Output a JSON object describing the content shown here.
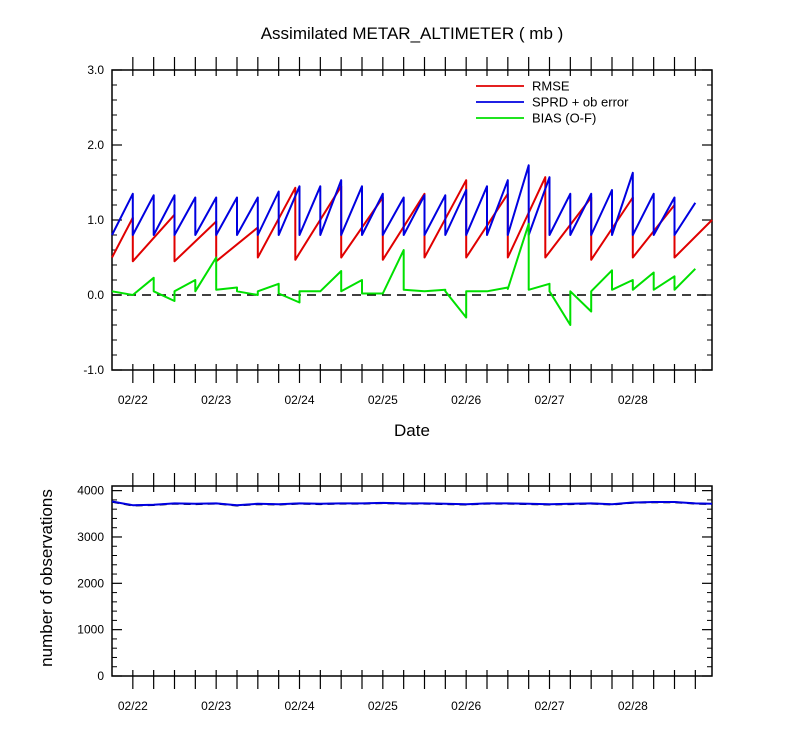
{
  "chart_data": [
    {
      "type": "line",
      "title": "Assimilated METAR_ALTIMETER ( mb )",
      "xlabel": "Date",
      "ylabel": "",
      "ylim": [
        -1.0,
        3.0
      ],
      "yticks": [
        "-1.0",
        "0.0",
        "1.0",
        "2.0",
        "3.0"
      ],
      "x_dates": [
        "02/22",
        "02/23",
        "02/24",
        "02/25",
        "02/26",
        "02/27",
        "02/28"
      ],
      "x_range_days": [
        21.75,
        28.95
      ],
      "zero_line": "dashed",
      "legend_position": "top-right",
      "series": [
        {
          "name": "RMSE",
          "color": "#e00000",
          "points": [
            [
              21.75,
              0.5
            ],
            [
              22.0,
              1.03
            ],
            [
              22.0,
              0.45
            ],
            [
              22.5,
              1.07
            ],
            [
              22.5,
              0.45
            ],
            [
              23.0,
              0.98
            ],
            [
              23.0,
              0.45
            ],
            [
              23.5,
              0.9
            ],
            [
              23.5,
              0.5
            ],
            [
              23.95,
              1.43
            ],
            [
              23.95,
              0.47
            ],
            [
              24.5,
              1.45
            ],
            [
              24.5,
              0.5
            ],
            [
              25.0,
              1.3
            ],
            [
              25.0,
              0.47
            ],
            [
              25.5,
              1.35
            ],
            [
              25.5,
              0.5
            ],
            [
              26.0,
              1.53
            ],
            [
              26.0,
              0.5
            ],
            [
              26.5,
              1.35
            ],
            [
              26.5,
              0.5
            ],
            [
              26.95,
              1.57
            ],
            [
              26.95,
              0.5
            ],
            [
              27.5,
              1.3
            ],
            [
              27.5,
              0.47
            ],
            [
              28.0,
              1.3
            ],
            [
              28.0,
              0.5
            ],
            [
              28.5,
              1.2
            ],
            [
              28.5,
              0.5
            ],
            [
              28.95,
              1.0
            ]
          ]
        },
        {
          "name": "SPRD + ob error",
          "color": "#0000e0",
          "points": [
            [
              21.75,
              0.8
            ],
            [
              22.0,
              1.35
            ],
            [
              22.0,
              0.8
            ],
            [
              22.25,
              1.33
            ],
            [
              22.25,
              0.8
            ],
            [
              22.5,
              1.33
            ],
            [
              22.5,
              0.8
            ],
            [
              22.75,
              1.3
            ],
            [
              22.75,
              0.8
            ],
            [
              23.0,
              1.3
            ],
            [
              23.0,
              0.8
            ],
            [
              23.25,
              1.3
            ],
            [
              23.25,
              0.8
            ],
            [
              23.5,
              1.3
            ],
            [
              23.5,
              0.8
            ],
            [
              23.75,
              1.38
            ],
            [
              23.75,
              0.8
            ],
            [
              24.0,
              1.45
            ],
            [
              24.0,
              0.8
            ],
            [
              24.25,
              1.45
            ],
            [
              24.25,
              0.8
            ],
            [
              24.5,
              1.53
            ],
            [
              24.5,
              0.8
            ],
            [
              24.75,
              1.45
            ],
            [
              24.75,
              0.8
            ],
            [
              25.0,
              1.35
            ],
            [
              25.0,
              0.8
            ],
            [
              25.25,
              1.3
            ],
            [
              25.25,
              0.8
            ],
            [
              25.5,
              1.33
            ],
            [
              25.5,
              0.8
            ],
            [
              25.75,
              1.33
            ],
            [
              25.75,
              0.8
            ],
            [
              26.0,
              1.4
            ],
            [
              26.0,
              0.8
            ],
            [
              26.25,
              1.45
            ],
            [
              26.25,
              0.8
            ],
            [
              26.5,
              1.53
            ],
            [
              26.5,
              0.8
            ],
            [
              26.75,
              1.73
            ],
            [
              26.75,
              0.8
            ],
            [
              27.0,
              1.57
            ],
            [
              27.0,
              0.8
            ],
            [
              27.25,
              1.35
            ],
            [
              27.25,
              0.8
            ],
            [
              27.5,
              1.35
            ],
            [
              27.5,
              0.8
            ],
            [
              27.75,
              1.4
            ],
            [
              27.75,
              0.8
            ],
            [
              28.0,
              1.63
            ],
            [
              28.0,
              0.8
            ],
            [
              28.25,
              1.35
            ],
            [
              28.25,
              0.8
            ],
            [
              28.5,
              1.3
            ],
            [
              28.5,
              0.8
            ],
            [
              28.75,
              1.23
            ]
          ]
        },
        {
          "name": "BIAS (O-F)",
          "color": "#00e000",
          "points": [
            [
              21.75,
              0.05
            ],
            [
              22.0,
              0.0
            ],
            [
              22.25,
              0.23
            ],
            [
              22.25,
              0.05
            ],
            [
              22.5,
              -0.08
            ],
            [
              22.5,
              0.05
            ],
            [
              22.75,
              0.2
            ],
            [
              22.75,
              0.05
            ],
            [
              23.0,
              0.5
            ],
            [
              23.0,
              0.07
            ],
            [
              23.25,
              0.1
            ],
            [
              23.25,
              0.05
            ],
            [
              23.5,
              0.0
            ],
            [
              23.5,
              0.05
            ],
            [
              23.75,
              0.15
            ],
            [
              23.75,
              0.02
            ],
            [
              24.0,
              -0.1
            ],
            [
              24.0,
              0.05
            ],
            [
              24.25,
              0.05
            ],
            [
              24.25,
              0.05
            ],
            [
              24.5,
              0.32
            ],
            [
              24.5,
              0.05
            ],
            [
              24.75,
              0.2
            ],
            [
              24.75,
              0.02
            ],
            [
              25.0,
              0.02
            ],
            [
              25.0,
              0.02
            ],
            [
              25.25,
              0.6
            ],
            [
              25.25,
              0.07
            ],
            [
              25.5,
              0.05
            ],
            [
              25.5,
              0.05
            ],
            [
              25.75,
              0.07
            ],
            [
              25.75,
              0.05
            ],
            [
              26.0,
              -0.3
            ],
            [
              26.0,
              0.05
            ],
            [
              26.25,
              0.05
            ],
            [
              26.25,
              0.05
            ],
            [
              26.5,
              0.1
            ],
            [
              26.5,
              0.08
            ],
            [
              26.75,
              0.95
            ],
            [
              26.75,
              0.07
            ],
            [
              27.0,
              0.15
            ],
            [
              27.0,
              0.05
            ],
            [
              27.25,
              -0.4
            ],
            [
              27.25,
              0.05
            ],
            [
              27.5,
              -0.22
            ],
            [
              27.5,
              0.05
            ],
            [
              27.75,
              0.33
            ],
            [
              27.75,
              0.07
            ],
            [
              28.0,
              0.2
            ],
            [
              28.0,
              0.07
            ],
            [
              28.25,
              0.3
            ],
            [
              28.25,
              0.07
            ],
            [
              28.5,
              0.25
            ],
            [
              28.5,
              0.07
            ],
            [
              28.75,
              0.35
            ]
          ]
        }
      ]
    },
    {
      "type": "line",
      "title": "",
      "xlabel": "",
      "ylabel": "number of observations",
      "ylim": [
        0,
        4100
      ],
      "yticks": [
        "0",
        "1000",
        "2000",
        "3000",
        "4000"
      ],
      "x_dates": [
        "02/22",
        "02/23",
        "02/24",
        "02/25",
        "02/26",
        "02/27",
        "02/28"
      ],
      "x_range_days": [
        21.75,
        28.95
      ],
      "series": [
        {
          "color": "#000000",
          "dashed": true,
          "points": [
            [
              21.75,
              3760
            ],
            [
              22.0,
              3680
            ],
            [
              22.25,
              3690
            ],
            [
              22.5,
              3720
            ],
            [
              22.75,
              3710
            ],
            [
              23.0,
              3720
            ],
            [
              23.25,
              3680
            ],
            [
              23.5,
              3710
            ],
            [
              23.75,
              3700
            ],
            [
              24.0,
              3720
            ],
            [
              24.25,
              3710
            ],
            [
              24.5,
              3720
            ],
            [
              24.75,
              3720
            ],
            [
              25.0,
              3730
            ],
            [
              25.25,
              3720
            ],
            [
              25.5,
              3720
            ],
            [
              25.75,
              3710
            ],
            [
              26.0,
              3700
            ],
            [
              26.25,
              3720
            ],
            [
              26.5,
              3720
            ],
            [
              26.75,
              3710
            ],
            [
              27.0,
              3700
            ],
            [
              27.25,
              3710
            ],
            [
              27.5,
              3720
            ],
            [
              27.75,
              3700
            ],
            [
              28.0,
              3740
            ],
            [
              28.25,
              3750
            ],
            [
              28.5,
              3750
            ],
            [
              28.75,
              3720
            ],
            [
              28.95,
              3710
            ]
          ]
        },
        {
          "color": "#0000e0",
          "dashed": false,
          "points": [
            [
              21.75,
              3765
            ],
            [
              22.0,
              3685
            ],
            [
              22.25,
              3695
            ],
            [
              22.5,
              3725
            ],
            [
              22.75,
              3715
            ],
            [
              23.0,
              3725
            ],
            [
              23.25,
              3685
            ],
            [
              23.5,
              3715
            ],
            [
              23.75,
              3705
            ],
            [
              24.0,
              3725
            ],
            [
              24.25,
              3715
            ],
            [
              24.5,
              3725
            ],
            [
              24.75,
              3725
            ],
            [
              25.0,
              3735
            ],
            [
              25.25,
              3725
            ],
            [
              25.5,
              3725
            ],
            [
              25.75,
              3715
            ],
            [
              26.0,
              3705
            ],
            [
              26.25,
              3725
            ],
            [
              26.5,
              3725
            ],
            [
              26.75,
              3715
            ],
            [
              27.0,
              3705
            ],
            [
              27.25,
              3715
            ],
            [
              27.5,
              3725
            ],
            [
              27.75,
              3705
            ],
            [
              28.0,
              3745
            ],
            [
              28.25,
              3755
            ],
            [
              28.5,
              3755
            ],
            [
              28.75,
              3725
            ],
            [
              28.95,
              3715
            ]
          ]
        }
      ]
    }
  ]
}
